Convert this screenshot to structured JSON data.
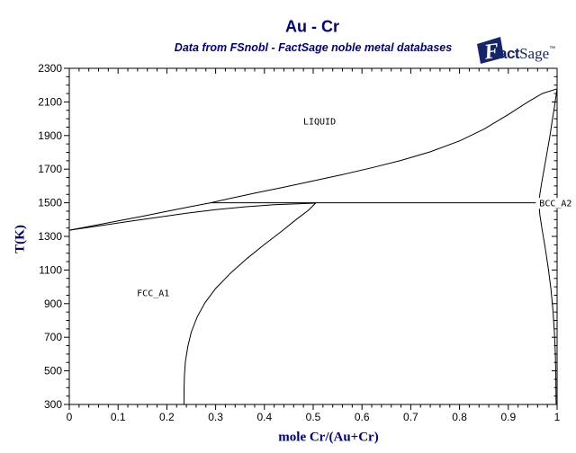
{
  "title": "Au - Cr",
  "subtitle": "Data from FSnobl - FactSage noble metal databases",
  "logo": {
    "f": "F",
    "act": "act",
    "sage": "Sage",
    "mark": "™"
  },
  "colors": {
    "heading_navy": "#000080",
    "logo_navy": "#16246b",
    "curve_black": "#000000",
    "background": "#ffffff"
  },
  "chart_data": {
    "type": "line",
    "title": "Au - Cr",
    "subtitle": "Data from FSnobl - FactSage noble metal databases",
    "xlabel": "mole Cr/(Au+Cr)",
    "ylabel": "T(K)",
    "xlim": [
      0,
      1
    ],
    "ylim": [
      300,
      2300
    ],
    "grid": false,
    "legend": "none",
    "x_ticks": {
      "major_values": [
        0,
        0.1,
        0.2,
        0.3,
        0.4,
        0.5,
        0.6,
        0.7,
        0.8,
        0.9,
        1
      ],
      "major_labels": [
        "0",
        "0.1",
        "0.2",
        "0.3",
        "0.4",
        "0.5",
        "0.6",
        "0.7",
        "0.8",
        "0.9",
        "1"
      ],
      "minor_step": 0.02
    },
    "y_ticks": {
      "major_values": [
        300,
        500,
        700,
        900,
        1100,
        1300,
        1500,
        1700,
        1900,
        2100,
        2300
      ],
      "major_labels": [
        "300",
        "500",
        "700",
        "900",
        "1100",
        "1300",
        "1500",
        "1700",
        "1900",
        "2100",
        "2300"
      ],
      "minor_step": 50
    },
    "series": [
      {
        "name": "liquidus",
        "points": [
          [
            0,
            1337
          ],
          [
            0.05,
            1364
          ],
          [
            0.1,
            1392
          ],
          [
            0.15,
            1420
          ],
          [
            0.2,
            1449
          ],
          [
            0.25,
            1478
          ],
          [
            0.29,
            1500
          ],
          [
            0.33,
            1526
          ],
          [
            0.38,
            1557
          ],
          [
            0.44,
            1593
          ],
          [
            0.5,
            1630
          ],
          [
            0.56,
            1668
          ],
          [
            0.62,
            1708
          ],
          [
            0.68,
            1752
          ],
          [
            0.74,
            1803
          ],
          [
            0.8,
            1868
          ],
          [
            0.85,
            1938
          ],
          [
            0.9,
            2025
          ],
          [
            0.94,
            2100
          ],
          [
            0.97,
            2150
          ],
          [
            1.0,
            2178
          ]
        ]
      },
      {
        "name": "fcc-solidus",
        "points": [
          [
            0,
            1337
          ],
          [
            0.06,
            1362
          ],
          [
            0.12,
            1388
          ],
          [
            0.18,
            1413
          ],
          [
            0.24,
            1438
          ],
          [
            0.3,
            1459
          ],
          [
            0.36,
            1476
          ],
          [
            0.42,
            1488
          ],
          [
            0.48,
            1495
          ],
          [
            0.505,
            1498
          ]
        ]
      },
      {
        "name": "fcc-solvus",
        "points": [
          [
            0.505,
            1498
          ],
          [
            0.49,
            1455
          ],
          [
            0.465,
            1400
          ],
          [
            0.435,
            1330
          ],
          [
            0.4,
            1252
          ],
          [
            0.365,
            1170
          ],
          [
            0.33,
            1080
          ],
          [
            0.3,
            990
          ],
          [
            0.278,
            905
          ],
          [
            0.262,
            820
          ],
          [
            0.25,
            730
          ],
          [
            0.243,
            645
          ],
          [
            0.238,
            555
          ],
          [
            0.236,
            470
          ],
          [
            0.2353,
            385
          ],
          [
            0.235,
            300
          ]
        ]
      },
      {
        "name": "bcc-solvus",
        "points": [
          [
            1.0,
            2178
          ],
          [
            0.9955,
            2090
          ],
          [
            0.99,
            1990
          ],
          [
            0.9855,
            1900
          ],
          [
            0.98,
            1810
          ],
          [
            0.974,
            1710
          ],
          [
            0.9685,
            1620
          ],
          [
            0.9645,
            1550
          ],
          [
            0.9625,
            1500
          ],
          [
            0.9645,
            1430
          ],
          [
            0.969,
            1345
          ],
          [
            0.9755,
            1235
          ],
          [
            0.982,
            1110
          ],
          [
            0.9875,
            985
          ],
          [
            0.9915,
            860
          ],
          [
            0.9945,
            730
          ],
          [
            0.9965,
            595
          ],
          [
            0.9975,
            460
          ],
          [
            0.998,
            300
          ]
        ]
      },
      {
        "name": "peritectic-line-1500K",
        "points": [
          [
            0.29,
            1500
          ],
          [
            0.9625,
            1500
          ]
        ]
      }
    ],
    "region_labels": [
      {
        "text": "LIQUID",
        "x": 0.513,
        "T": 1985,
        "bg": false
      },
      {
        "text": "FCC_A1",
        "x": 0.172,
        "T": 962,
        "bg": false
      },
      {
        "text": "BCC_A2",
        "x": 0.997,
        "T": 1497,
        "bg": true
      }
    ]
  }
}
